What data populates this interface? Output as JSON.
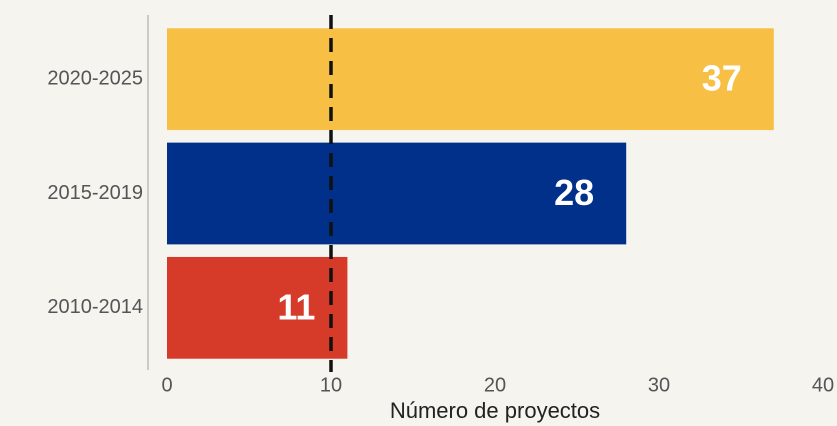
{
  "chart_data": {
    "type": "barh",
    "categories": [
      "2020-2025",
      "2015-2019",
      "2010-2014"
    ],
    "values": [
      37,
      28,
      11
    ],
    "colors": [
      "#f8bf45",
      "#00308a",
      "#d63a28"
    ],
    "xlabel": "Número de proyectos",
    "xlim": [
      0,
      40
    ],
    "xticks": [
      0,
      10,
      20,
      30,
      40
    ],
    "reference_line": 10,
    "grid": false
  }
}
